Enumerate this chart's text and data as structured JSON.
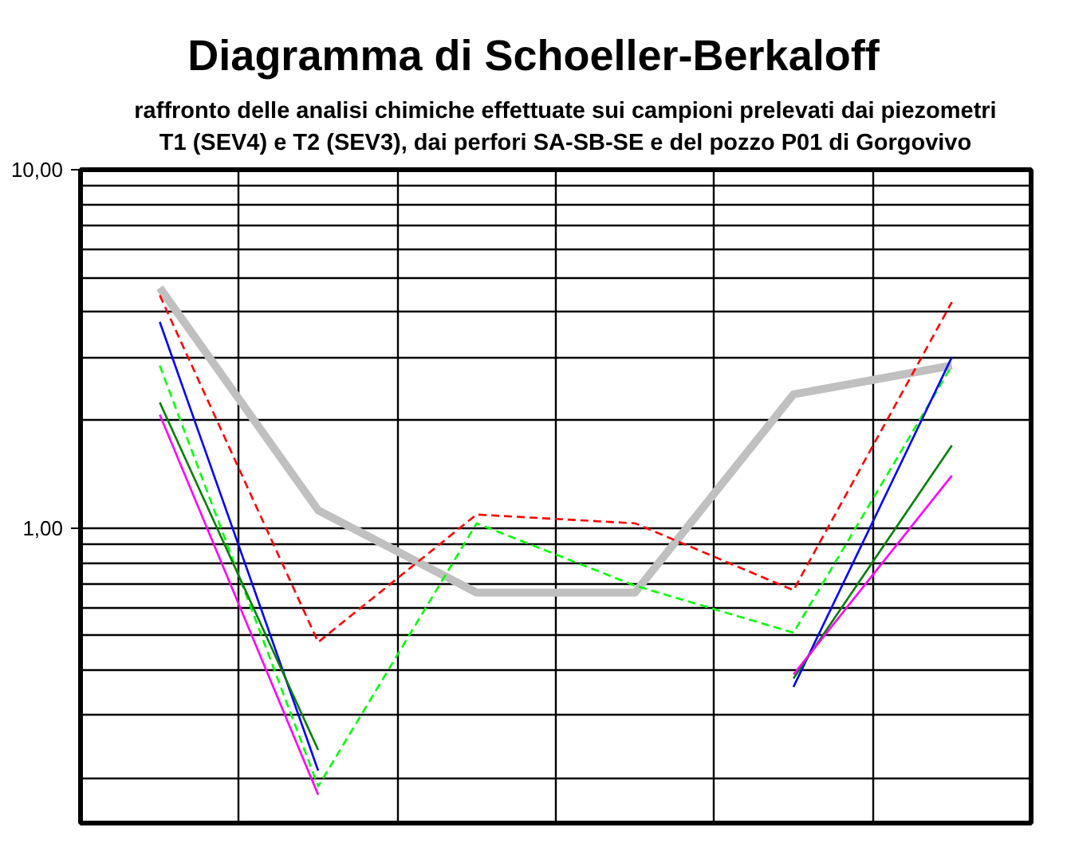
{
  "chart_data": {
    "type": "line",
    "title": "Diagramma di Schoeller-Berkaloff",
    "subtitle": "raffronto delle analisi chimiche effettuate sui campioni prelevati dai piezometri\nT1 (SEV4) e T2 (SEV3), dai perfori SA-SB-SE e del pozzo P01 di Gorgovivo",
    "categories": [
      null,
      null,
      null,
      null,
      null,
      null
    ],
    "log": true,
    "grid": true,
    "tick_labels": "y",
    "marker": "none",
    "ylim": [
      0.15,
      10
    ],
    "yticks": [
      {
        "value": 0.2,
        "label": null
      },
      {
        "value": 0.3,
        "label": null
      },
      {
        "value": 0.4,
        "label": null
      },
      {
        "value": 0.5,
        "label": null
      },
      {
        "value": 0.6,
        "label": null
      },
      {
        "value": 0.7,
        "label": null
      },
      {
        "value": 0.8,
        "label": null
      },
      {
        "value": 0.9,
        "label": null
      },
      {
        "value": 1,
        "label": "1,00"
      },
      {
        "value": 2,
        "label": null
      },
      {
        "value": 3,
        "label": null
      },
      {
        "value": 4,
        "label": null
      },
      {
        "value": 5,
        "label": null
      },
      {
        "value": 6,
        "label": null
      },
      {
        "value": 7,
        "label": null
      },
      {
        "value": 8,
        "label": null
      },
      {
        "value": 9,
        "label": null
      },
      {
        "value": 10,
        "label": "10,00"
      }
    ],
    "series": [
      {
        "color": "#c0c0c0",
        "line_style": "solid",
        "values": [
          4.68,
          1.12,
          0.66,
          0.66,
          2.36,
          2.84
        ]
      },
      {
        "color": "#ff0000",
        "line_style": "dashed",
        "values": [
          4.46,
          0.48,
          1.09,
          1.03,
          0.67,
          4.27
        ]
      },
      {
        "color": "#00ff00",
        "line_style": "dashed",
        "values": [
          2.84,
          0.19,
          1.03,
          0.69,
          0.51,
          2.84
        ]
      },
      {
        "color": "#0000ff",
        "line_style": "solid",
        "values": [
          3.76,
          0.21,
          null,
          null,
          0.36,
          3.0
        ]
      },
      {
        "color": "#008000",
        "line_style": "solid",
        "values": [
          2.24,
          0.24,
          null,
          null,
          0.38,
          1.7
        ]
      },
      {
        "color": "#ff00ff",
        "line_style": "solid",
        "values": [
          2.07,
          0.18,
          null,
          null,
          0.39,
          1.4
        ]
      }
    ]
  }
}
